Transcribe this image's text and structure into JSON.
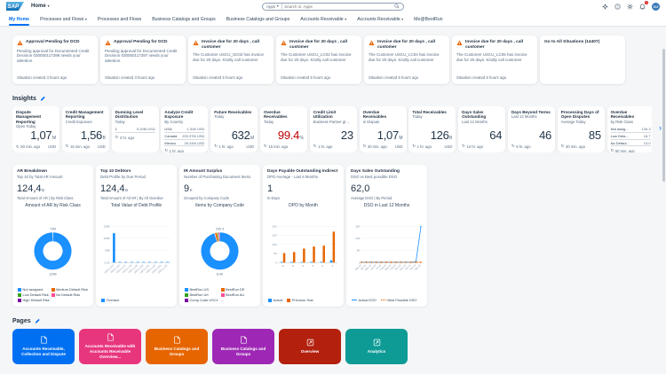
{
  "shell": {
    "logo": "SAP",
    "title": "Home",
    "search": {
      "scope": "Apps",
      "placeholder": "Search in: Apps"
    },
    "icons": [
      {
        "name": "assistant-icon"
      },
      {
        "name": "help-icon"
      },
      {
        "name": "settings-icon"
      },
      {
        "name": "notifications-bell-icon",
        "badge": "1"
      }
    ],
    "avatar": "DJ"
  },
  "nav": {
    "items": [
      {
        "label": "My Home",
        "selected": true,
        "dropdown": false
      },
      {
        "label": "Processes and Flows",
        "selected": false,
        "dropdown": true
      },
      {
        "label": "Processes and Flows",
        "selected": false,
        "dropdown": false
      },
      {
        "label": "Business Catalogs and Groups",
        "selected": false,
        "dropdown": false
      },
      {
        "label": "Business Catalogs and Groups",
        "selected": false,
        "dropdown": false
      },
      {
        "label": "Accounts Receivable",
        "selected": false,
        "dropdown": true
      },
      {
        "label": "Accounts Receivable",
        "selected": false,
        "dropdown": true
      },
      {
        "label": "Me@BestRun",
        "selected": false,
        "dropdown": false
      }
    ]
  },
  "todos": {
    "cards": [
      {
        "icon": true,
        "title": "Approval Pending for DCD",
        "body": "Pending approval for Documented Credit Decision 030000117398 needs your attention.",
        "footer": "Situation created 3 hours ago"
      },
      {
        "icon": true,
        "title": "Approval Pending for DCD",
        "body": "Pending approval for Documented Credit Decision 030000117397 needs your attention.",
        "footer": "Situation created 3 hours ago"
      },
      {
        "icon": true,
        "title": "Invoice due for 20 days , call customer",
        "body": "The Customer USCU_SC02 has invoice due for 20 days. Kindly call customer",
        "footer": "Situation created 5 hours ago"
      },
      {
        "icon": true,
        "title": "Invoice due for 20 days , call customer",
        "body": "The Customer USCU_LC02 has invoice due for 20 days. Kindly call customer",
        "footer": "Situation created 5 hours ago"
      },
      {
        "icon": true,
        "title": "Invoice due for 20 days , call customer",
        "body": "The Customer USCU_LC04 has invoice due for 20 days. Kindly call customer",
        "footer": "Situation created 5 hours ago"
      },
      {
        "icon": true,
        "title": "Invoice due for 20 days , call customer",
        "body": "The Customer USCU_LC05 has invoice due for 20 days. Kindly call customer",
        "footer": "Situation created 5 hours ago"
      },
      {
        "icon": false,
        "title": "Go to All Situations (14407)",
        "body": "",
        "footer": ""
      }
    ]
  },
  "insights": {
    "heading": "Insights",
    "tiles": [
      {
        "title": "Dispute Management Reporting",
        "subtitle": "Open Today",
        "value": "1,07",
        "unit": "M",
        "footer": "50 min. ago",
        "footer_unit": "USD"
      },
      {
        "title": "Credit Management Reporting",
        "subtitle": "Credit Exposure",
        "value": "1,56",
        "unit": "B",
        "footer": "15 min. ago",
        "footer_unit": "USD"
      },
      {
        "title": "Dunning Level Distribution",
        "subtitle": "Today",
        "rows": [
          {
            "label": "1",
            "value": "9.20M USD"
          }
        ],
        "footer": "3 hr. ago",
        "footer_unit": ""
      },
      {
        "title": "Analyze Credit Exposure",
        "subtitle": "By Country",
        "rows": [
          {
            "label": "USA",
            "value": "1.31B USD"
          },
          {
            "label": "Canada",
            "value": "200.37M USD"
          },
          {
            "label": "Mexico",
            "value": "39.24M USD"
          }
        ],
        "footer": "1 hr. ago",
        "footer_unit": ""
      },
      {
        "title": "Future Receivables",
        "subtitle": "Today",
        "value": "632",
        "unit": "M",
        "footer": "1 hr. ago",
        "footer_unit": "USD"
      },
      {
        "title": "Overdue Receivables",
        "subtitle": "Today",
        "value": "99.4",
        "unit": "%",
        "negative": true,
        "footer": "15 min. ago",
        "footer_unit": ""
      },
      {
        "title": "Credit Limit Utilization",
        "subtitle": "Business Partner gt ...",
        "value": "23",
        "unit": "",
        "footer": "1 hr. ago",
        "footer_unit": ""
      },
      {
        "title": "Overdue Receivables",
        "subtitle": "In Dispute",
        "value": "1,07",
        "unit": "M",
        "footer": "30 min. ago",
        "footer_unit": "USD"
      },
      {
        "title": "Total Receivables",
        "subtitle": "Today",
        "value": "126",
        "unit": "B",
        "footer": "1 hr. ago",
        "footer_unit": "USD"
      },
      {
        "title": "Days Sales Outstanding",
        "subtitle": "Last 12 Months",
        "value": "64",
        "unit": "",
        "footer": "10 hr. ago",
        "footer_unit": ""
      },
      {
        "title": "Days Beyond Terms",
        "subtitle": "Last 12 Months",
        "value": "46",
        "unit": "",
        "footer": "9 hr. ago",
        "footer_unit": ""
      },
      {
        "title": "Processing Days of Open Disputes",
        "subtitle": "Average Today",
        "value": "85",
        "unit": "",
        "footer": "30 min. ago",
        "footer_unit": ""
      },
      {
        "title": "Overdue Receivables",
        "subtitle": "by Risk Class",
        "rows": [
          {
            "label": "Not assig...",
            "value": "126.3"
          },
          {
            "label": "Low Defa...",
            "value": "18.7"
          },
          {
            "label": "No Defaul...",
            "value": "13.0"
          }
        ],
        "footer": "50 min. ago",
        "footer_unit": ""
      }
    ],
    "cards": [
      {
        "title": "AR Breakdown",
        "subtitle": "Top 10 by Total AR Amount",
        "value": "124,4",
        "unit": "B",
        "info": "Total Amount of AR | By Risk Class",
        "chart": {
          "type": "donut",
          "title": "Amount of AR by Risk Class",
          "top_label": "73M",
          "bottom_label": "124B",
          "slices": [
            {
              "label": "Not assigned",
              "value": 124400,
              "color": "#1b90ff"
            },
            {
              "label": "Medium Default Risk",
              "value": 40,
              "color": "#e76500"
            },
            {
              "label": "Low Default Risk",
              "value": 20,
              "color": "#36a41d"
            },
            {
              "label": "No Default Risk",
              "value": 8,
              "color": "#fa4f96"
            },
            {
              "label": "High Default Risk",
              "value": 5,
              "color": "#7800a4"
            }
          ],
          "legend": [
            {
              "label": "Not assigned",
              "color": "#1b90ff"
            },
            {
              "label": "Medium Default Risk",
              "color": "#e76500"
            },
            {
              "label": "Low Default Risk",
              "color": "#36a41d"
            },
            {
              "label": "No Default Risk",
              "color": "#fa4f96"
            },
            {
              "label": "High Default Risk",
              "color": "#7800a4"
            }
          ]
        }
      },
      {
        "title": "Top 10 Debtors",
        "subtitle": "Debt Profile by Due Period",
        "value": "124,4",
        "unit": "B",
        "info": "Total Amount of All AR | By All Overdue",
        "chart": {
          "type": "bar",
          "title": "Total Value of Debt Profile",
          "color": "#1b90ff",
          "ymax": 150,
          "rotate_labels": true,
          "yticks": [
            {
              "v": 0,
              "label": "0.00"
            },
            {
              "v": 50,
              "label": "50B"
            },
            {
              "v": 100,
              "label": "100B"
            },
            {
              "v": 150,
              "label": "150B"
            }
          ],
          "x": [
            "USCU_C02",
            "USCU_L03",
            "USCU_L01",
            "USCU_L04",
            "USCU_L05",
            "USCU_S02",
            "USCU_C01",
            "USCU_L02",
            "USCU_S01",
            "USCU_C03"
          ],
          "values": [
            121,
            1.0,
            0.9,
            0.8,
            0.8,
            0.7,
            0.7,
            0.6,
            0.6,
            0.5
          ],
          "legend": [
            {
              "label": "Overdue",
              "color": "#1b90ff"
            }
          ]
        }
      },
      {
        "title": "IR Amount Surplus",
        "subtitle": "Number of Purchasing Document Items",
        "value": "9",
        "unit": "K",
        "info": "Grouped by Company Code",
        "chart": {
          "type": "donut",
          "title": "Items by Company Code",
          "top_label": "205  4",
          "bottom_label": "8,4K",
          "slices": [
            {
              "label": "BestRun US",
              "value": 8400,
              "color": "#1b90ff"
            },
            {
              "label": "BestRun DE",
              "value": 205,
              "color": "#e76500"
            },
            {
              "label": "BestRun UK",
              "value": 80,
              "color": "#36a41d"
            },
            {
              "label": "BestRun AU",
              "value": 60,
              "color": "#fa4f96"
            },
            {
              "label": "Comp Code USC1",
              "value": 50,
              "color": "#7800a4"
            }
          ],
          "legend": [
            {
              "label": "BestRun US",
              "color": "#1b90ff"
            },
            {
              "label": "BestRun DE",
              "color": "#e76500"
            },
            {
              "label": "BestRun UK",
              "color": "#36a41d"
            },
            {
              "label": "BestRun AU",
              "color": "#fa4f96"
            },
            {
              "label": "Comp Code USC1",
              "color": "#7800a4"
            },
            {
              "label": "...",
              "color": null
            }
          ]
        }
      },
      {
        "title": "Days Payable Outstanding Indirect",
        "subtitle": "DPO Average - Last 6 Months",
        "value": "1",
        "unit": "",
        "info": "In Days",
        "chart": {
          "type": "groupedBar",
          "title": "DPO by Month",
          "ymax": 200,
          "rotate_labels": false,
          "yticks": [
            {
              "v": 0,
              "label": "0"
            },
            {
              "v": 50,
              "label": "50"
            },
            {
              "v": 100,
              "label": "100"
            },
            {
              "v": 150,
              "label": "150"
            },
            {
              "v": 200,
              "label": "200"
            }
          ],
          "x": [
            "6",
            "5",
            "4",
            "3",
            "2",
            "1"
          ],
          "series": [
            {
              "name": "Actual",
              "color": "#1b90ff",
              "values": [
                4,
                4,
                3,
                4,
                4,
                12
              ]
            },
            {
              "name": "Previous Year",
              "color": "#e76500",
              "values": [
                52,
                58,
                77,
                88,
                93,
                170
              ]
            }
          ],
          "legend": [
            {
              "label": "Actual",
              "color": "#1b90ff"
            },
            {
              "label": "Previous Year",
              "color": "#e76500"
            }
          ]
        }
      },
      {
        "title": "Days Sales Outstanding",
        "subtitle": "DSO vs Best possible DSO",
        "value": "62,0",
        "unit": "",
        "info": "Average DSO | By Period",
        "chart": {
          "type": "line",
          "title": "DSO in Last 12 Months",
          "ymax": 15000,
          "rotate_labels": true,
          "yticks": [
            {
              "v": 0,
              "label": "0"
            },
            {
              "v": 5000,
              "label": "5K"
            },
            {
              "v": 10000,
              "label": "10K"
            },
            {
              "v": 15000,
              "label": "15K"
            }
          ],
          "x": [
            "Mar 23",
            "Apr 23",
            "May 23",
            "Jun 23",
            "Jul 23",
            "Aug 23",
            "Sep 23",
            "Oct 23",
            "Nov 23",
            "Dec 23",
            "Jan 24",
            "Feb 24",
            "Mar 24"
          ],
          "series": [
            {
              "name": "Actual DSO",
              "color": "#1b90ff",
              "dashed": false,
              "values": [
                130,
                125,
                128,
                122,
                126,
                124,
                127,
                123,
                125,
                128,
                126,
                300,
                14800
              ]
            },
            {
              "name": "Best Possible DSO",
              "color": "#e76500",
              "dashed": true,
              "values": [
                100,
                98,
                102,
                99,
                101,
                100,
                103,
                99,
                100,
                102,
                101,
                105,
                110
              ]
            }
          ],
          "legend": [
            {
              "label": "Actual DSO",
              "color": "#1b90ff",
              "marker": "line"
            },
            {
              "label": "Best Possible DSO",
              "color": "#e76500",
              "marker": "dash"
            }
          ]
        }
      }
    ]
  },
  "pages": {
    "heading": "Pages",
    "tiles": [
      {
        "label": "Accounts Receivable, Collection and Dispute",
        "color": "#0070f2",
        "icon": "page"
      },
      {
        "label": "Accounts Receivable with Accounts Receivable Overview...",
        "color": "#e8367d",
        "icon": "page"
      },
      {
        "label": "Business Catalogs and Groups",
        "color": "#e76500",
        "icon": "page"
      },
      {
        "label": "Business Catalogs and Groups",
        "color": "#9e28b5",
        "icon": "page"
      },
      {
        "label": "Overview",
        "color": "#b3200e",
        "icon": "overview-page"
      },
      {
        "label": "Analytics",
        "color": "#0e9b96",
        "icon": "overview-page"
      }
    ]
  }
}
